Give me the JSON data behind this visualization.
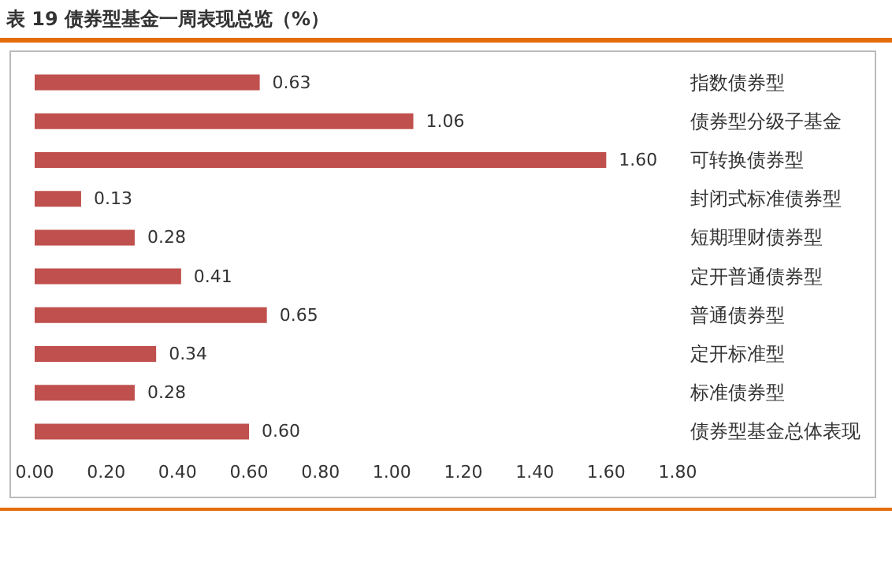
{
  "chart_data": {
    "type": "bar",
    "title": "表 19  债券型基金一周表现总览（%）",
    "orientation": "horizontal",
    "categories": [
      "指数债券型",
      "债券型分级子基金",
      "可转换债券型",
      "封闭式标准债券型",
      "短期理财债券型",
      "定开普通债券型",
      "普通债券型",
      "定开标准型",
      "标准债券型",
      "债券型基金总体表现"
    ],
    "values": [
      0.63,
      1.06,
      1.6,
      0.13,
      0.28,
      0.41,
      0.65,
      0.34,
      0.28,
      0.6
    ],
    "value_labels": [
      "0.63",
      "1.06",
      "1.60",
      "0.13",
      "0.28",
      "0.41",
      "0.65",
      "0.34",
      "0.28",
      "0.60"
    ],
    "color": "#c0504d",
    "xlim": [
      0,
      1.8
    ],
    "xticks": [
      {
        "value": 0,
        "label": "0.00"
      },
      {
        "value": 0.2,
        "label": "0.20"
      },
      {
        "value": 0.4,
        "label": "0.40"
      },
      {
        "value": 0.6,
        "label": "0.60"
      },
      {
        "value": 0.8,
        "label": "0.80"
      },
      {
        "value": 1,
        "label": "1.00"
      },
      {
        "value": 1.2,
        "label": "1.20"
      },
      {
        "value": 1.4,
        "label": "1.40"
      },
      {
        "value": 1.6,
        "label": "1.60"
      },
      {
        "value": 1.8,
        "label": "1.80"
      }
    ],
    "grid": false
  }
}
